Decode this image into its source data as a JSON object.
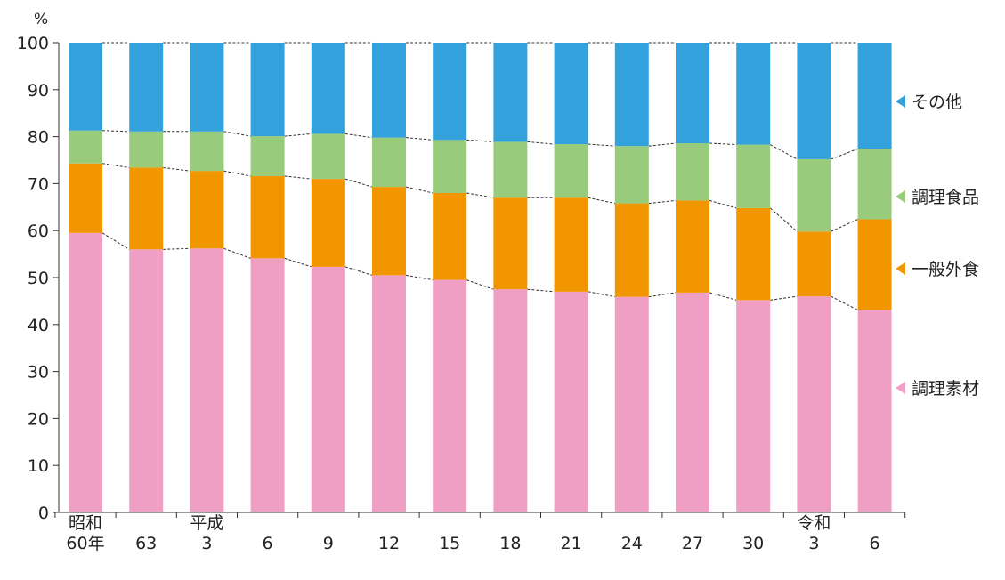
{
  "chart_data": {
    "type": "bar",
    "stacked": true,
    "title": "",
    "ylabel": "%",
    "xlabel": "",
    "ylim": [
      0,
      100
    ],
    "yticks": [
      0,
      10,
      20,
      30,
      40,
      50,
      60,
      70,
      80,
      90,
      100
    ],
    "categories": [
      "昭和 60年",
      "63",
      "平成 3",
      "6",
      "9",
      "12",
      "15",
      "18",
      "21",
      "24",
      "27",
      "30",
      "令和 3",
      "6"
    ],
    "category_labels": [
      {
        "era": "昭和",
        "year": "60年"
      },
      {
        "era": "",
        "year": "63"
      },
      {
        "era": "平成",
        "year": "3"
      },
      {
        "era": "",
        "year": "6"
      },
      {
        "era": "",
        "year": "9"
      },
      {
        "era": "",
        "year": "12"
      },
      {
        "era": "",
        "year": "15"
      },
      {
        "era": "",
        "year": "18"
      },
      {
        "era": "",
        "year": "21"
      },
      {
        "era": "",
        "year": "24"
      },
      {
        "era": "",
        "year": "27"
      },
      {
        "era": "",
        "year": "30"
      },
      {
        "era": "令和",
        "year": "3"
      },
      {
        "era": "",
        "year": "6"
      }
    ],
    "series": [
      {
        "name": "調理素材",
        "color": "#f09fc4",
        "values": [
          59.5,
          56.0,
          56.2,
          54.1,
          52.3,
          50.5,
          49.5,
          47.5,
          47.0,
          45.9,
          46.8,
          45.2,
          46.0,
          43.1
        ]
      },
      {
        "name": "一般外食",
        "color": "#f29600",
        "values": [
          14.8,
          17.4,
          16.5,
          17.5,
          18.7,
          18.8,
          18.5,
          19.5,
          20.0,
          19.9,
          19.6,
          19.6,
          13.8,
          19.3
        ]
      },
      {
        "name": "調理食品",
        "color": "#98cb7b",
        "values": [
          7.0,
          7.7,
          8.4,
          8.5,
          9.6,
          10.5,
          11.3,
          11.9,
          11.4,
          12.2,
          12.2,
          13.5,
          15.4,
          15.0
        ]
      },
      {
        "name": "その他",
        "color": "#33a2dc",
        "values": [
          18.7,
          18.9,
          18.9,
          19.9,
          19.4,
          20.2,
          20.7,
          21.1,
          21.6,
          22.0,
          21.4,
          21.7,
          24.8,
          22.6
        ]
      }
    ],
    "legend": {
      "placement": "right",
      "order": [
        "その他",
        "調理食品",
        "一般外食",
        "調理素材"
      ]
    },
    "connector_lines": "dashed",
    "grid": false
  }
}
